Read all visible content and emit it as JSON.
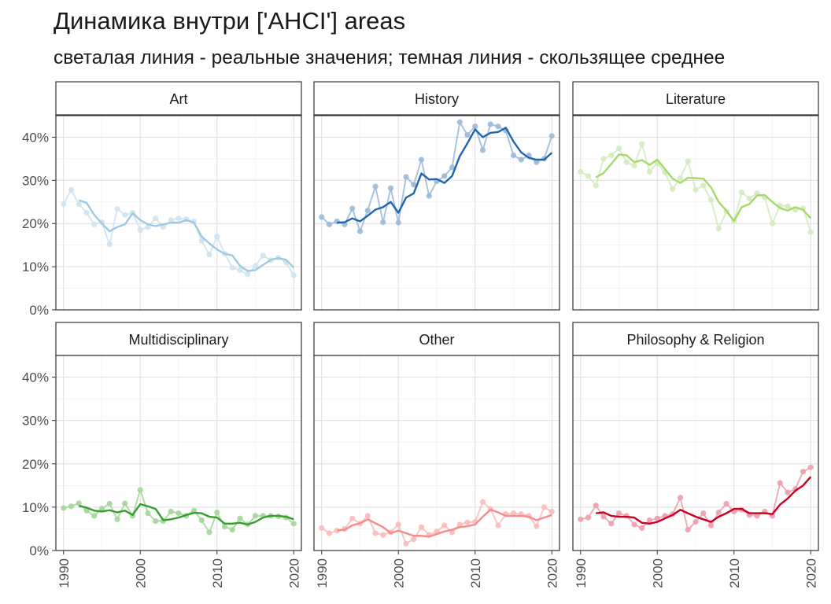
{
  "title": "Динамика внутри ['AHCI'] areas",
  "subtitle": "светалая линия - реальные значения; темная линия - скользящее среднее",
  "chart_data": {
    "type": "line",
    "layout": "facet-grid-2x3",
    "grid": true,
    "x_ticks": [
      "1990",
      "2000",
      "2010",
      "2020"
    ],
    "y_ticks": [
      "0%",
      "10%",
      "20%",
      "30%",
      "40%"
    ],
    "xlim": [
      1989,
      2021
    ],
    "ylim": [
      0,
      45
    ],
    "years": [
      1990,
      1991,
      1992,
      1993,
      1994,
      1995,
      1996,
      1997,
      1998,
      1999,
      2000,
      2001,
      2002,
      2003,
      2004,
      2005,
      2006,
      2007,
      2008,
      2009,
      2010,
      2011,
      2012,
      2013,
      2014,
      2015,
      2016,
      2017,
      2018,
      2019,
      2020
    ],
    "panels": [
      {
        "name": "Art",
        "light": "#cfe3f0",
        "dark": "#9ecae1",
        "values": [
          24.5,
          27.8,
          24.5,
          22.5,
          19.8,
          20.3,
          15.2,
          23.4,
          22.0,
          22.5,
          18.5,
          19.2,
          21.2,
          19.2,
          20.8,
          21.2,
          21.0,
          20.5,
          16.0,
          12.8,
          17.0,
          13.0,
          9.8,
          9.2,
          8.2,
          10.2,
          12.6,
          11.5,
          12.1,
          11.0,
          8.0
        ],
        "smooth": [
          null,
          null,
          25.4,
          24.8,
          22.0,
          20.0,
          18.2,
          19.2,
          19.8,
          22.4,
          20.8,
          19.8,
          19.4,
          19.8,
          20.2,
          20.2,
          20.8,
          20.2,
          17.0,
          15.4,
          14.0,
          13.0,
          12.6,
          10.2,
          9.0,
          9.2,
          10.4,
          11.6,
          12.0,
          11.6,
          9.8
        ]
      },
      {
        "name": "History",
        "light": "#9bbad9",
        "dark": "#2166ac",
        "values": [
          21.5,
          19.8,
          20.5,
          19.8,
          23.5,
          18.2,
          23.0,
          28.6,
          20.3,
          28.2,
          20.2,
          30.8,
          29.0,
          34.8,
          26.4,
          29.8,
          31.0,
          33.0,
          43.5,
          40.5,
          42.5,
          37.0,
          43.0,
          42.5,
          41.5,
          35.8,
          34.8,
          35.8,
          34.2,
          35.0,
          40.3
        ],
        "smooth": [
          null,
          null,
          20.2,
          20.3,
          21.2,
          20.5,
          21.8,
          23.2,
          23.8,
          25.0,
          22.5,
          26.0,
          27.0,
          31.6,
          30.2,
          30.3,
          29.4,
          31.0,
          35.6,
          38.6,
          41.8,
          40.0,
          41.0,
          41.2,
          42.2,
          39.0,
          36.5,
          35.2,
          34.8,
          34.8,
          36.4
        ]
      },
      {
        "name": "Literature",
        "light": "#d4ebc0",
        "dark": "#a6d96a",
        "values": [
          32.0,
          31.0,
          28.8,
          35.0,
          35.8,
          37.4,
          34.2,
          33.4,
          38.4,
          32.0,
          34.0,
          31.8,
          28.0,
          30.5,
          34.4,
          27.8,
          28.8,
          25.5,
          18.8,
          22.8,
          20.5,
          27.2,
          25.8,
          27.0,
          26.0,
          20.0,
          24.2,
          24.0,
          23.2,
          23.5,
          18.0
        ],
        "smooth": [
          null,
          null,
          30.7,
          31.7,
          33.8,
          36.0,
          35.8,
          34.2,
          34.7,
          33.6,
          34.8,
          32.6,
          30.4,
          29.4,
          30.6,
          30.5,
          30.4,
          28.4,
          25.0,
          23.0,
          20.6,
          23.8,
          24.5,
          26.5,
          26.6,
          25.0,
          23.6,
          23.0,
          23.8,
          23.2,
          21.2
        ]
      },
      {
        "name": "Multidisciplinary",
        "light": "#a6d59b",
        "dark": "#33a02c",
        "values": [
          9.8,
          10.2,
          10.9,
          9.2,
          8.0,
          9.7,
          10.8,
          7.2,
          10.9,
          8.0,
          14.0,
          8.6,
          6.8,
          6.8,
          9.0,
          8.6,
          8.0,
          9.2,
          7.0,
          4.2,
          8.8,
          5.5,
          4.8,
          7.4,
          6.0,
          8.0,
          8.0,
          8.0,
          7.9,
          7.6,
          6.2
        ],
        "smooth": [
          null,
          null,
          10.3,
          9.9,
          9.2,
          9.0,
          9.3,
          8.8,
          9.2,
          8.2,
          10.7,
          10.2,
          9.6,
          7.0,
          7.2,
          7.6,
          8.2,
          8.7,
          8.6,
          7.8,
          7.6,
          6.2,
          6.2,
          6.4,
          6.0,
          6.6,
          7.6,
          8.0,
          8.0,
          7.8,
          7.2
        ]
      },
      {
        "name": "Other",
        "light": "#f9bcbc",
        "dark": "#f58b8b",
        "values": [
          5.2,
          4.0,
          4.6,
          5.0,
          7.4,
          6.2,
          8.0,
          4.0,
          3.6,
          4.2,
          6.0,
          1.6,
          2.6,
          5.4,
          3.6,
          4.4,
          5.8,
          4.2,
          6.0,
          6.5,
          6.6,
          11.2,
          9.6,
          5.8,
          8.4,
          8.6,
          8.4,
          8.0,
          5.6,
          10.0,
          9.0
        ],
        "smooth": [
          null,
          null,
          4.6,
          4.8,
          5.8,
          6.3,
          7.2,
          6.3,
          5.4,
          4.0,
          4.6,
          4.0,
          3.4,
          3.4,
          3.2,
          3.8,
          4.4,
          4.8,
          5.4,
          5.6,
          6.0,
          7.8,
          9.4,
          8.8,
          8.0,
          8.0,
          8.0,
          7.8,
          7.0,
          7.6,
          8.2
        ]
      },
      {
        "name": "Philosophy & Religion",
        "light": "#eda0ad",
        "dark": "#cc0022",
        "values": [
          7.2,
          7.6,
          10.4,
          7.8,
          6.2,
          8.6,
          8.0,
          6.0,
          5.2,
          7.0,
          7.4,
          8.0,
          8.4,
          12.2,
          4.8,
          6.6,
          8.6,
          5.8,
          8.8,
          10.8,
          9.0,
          9.4,
          8.2,
          8.0,
          9.0,
          8.0,
          15.6,
          13.4,
          14.2,
          18.2,
          19.2
        ],
        "smooth": [
          null,
          null,
          8.6,
          8.8,
          8.0,
          7.8,
          7.8,
          7.6,
          6.4,
          6.2,
          6.6,
          7.4,
          8.2,
          9.4,
          8.6,
          7.8,
          7.2,
          6.6,
          7.8,
          8.6,
          9.6,
          9.6,
          8.6,
          8.6,
          8.6,
          8.4,
          10.6,
          12.0,
          13.8,
          15.0,
          17.0
        ]
      }
    ]
  }
}
